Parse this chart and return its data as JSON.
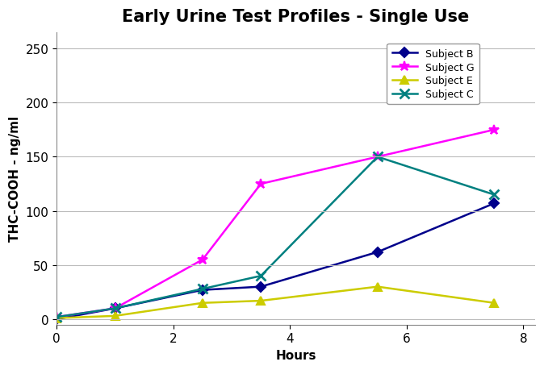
{
  "title": "Early Urine Test Profiles - Single Use",
  "xlabel": "Hours",
  "ylabel": "THC-COOH - ng/ml",
  "xlim": [
    0,
    8.2
  ],
  "ylim": [
    -5,
    265
  ],
  "yticks": [
    0,
    50,
    100,
    150,
    200,
    250
  ],
  "xticks": [
    0,
    2,
    4,
    6,
    8
  ],
  "series": [
    {
      "label": "Subject B",
      "color": "#00008B",
      "marker": "D",
      "markersize": 6,
      "x": [
        0,
        1,
        2.5,
        3.5,
        5.5,
        7.5
      ],
      "y": [
        0,
        10,
        27,
        30,
        62,
        107
      ]
    },
    {
      "label": "Subject G",
      "color": "#FF00FF",
      "marker": "*",
      "markersize": 9,
      "x": [
        0,
        1,
        2.5,
        3.5,
        5.5,
        7.5
      ],
      "y": [
        2,
        10,
        55,
        125,
        150,
        175
      ]
    },
    {
      "label": "Subject E",
      "color": "#CCCC00",
      "marker": "^",
      "markersize": 7,
      "x": [
        0,
        1,
        2.5,
        3.5,
        5.5,
        7.5
      ],
      "y": [
        1,
        3,
        15,
        17,
        30,
        15
      ]
    },
    {
      "label": "Subject C",
      "color": "#008080",
      "marker": "x",
      "markersize": 9,
      "x": [
        0,
        1,
        2.5,
        3.5,
        5.5,
        7.5
      ],
      "y": [
        2,
        10,
        28,
        40,
        150,
        115
      ]
    }
  ],
  "background_color": "#FFFFFF",
  "grid_color": "#BBBBBB",
  "title_fontsize": 15,
  "axis_label_fontsize": 11,
  "tick_fontsize": 11,
  "legend_fontsize": 9
}
